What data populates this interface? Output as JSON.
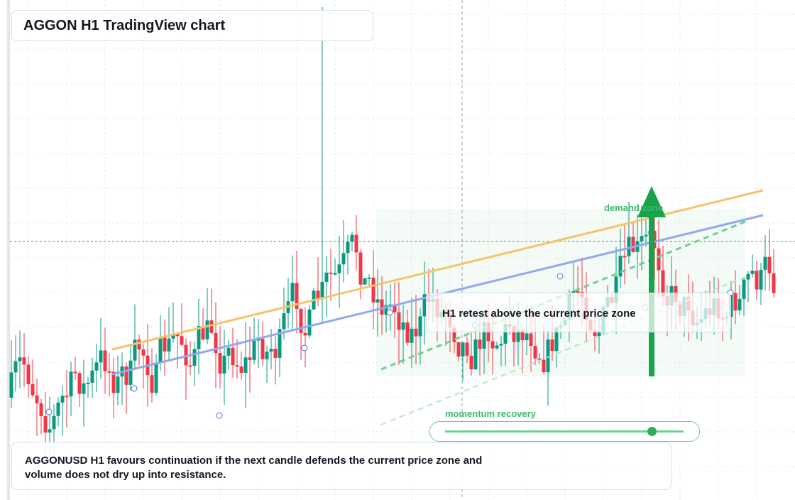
{
  "header": {
    "title": "AGGON H1 TradingView chart"
  },
  "annotations": {
    "zone": "demand zone",
    "retest": "H1 retest above the current price zone",
    "momentum": "momentum recovery"
  },
  "caption": "AGGONUSD H1 favours continuation if the next candle defends the current price zone and volume does not dry up into resistance."
}
